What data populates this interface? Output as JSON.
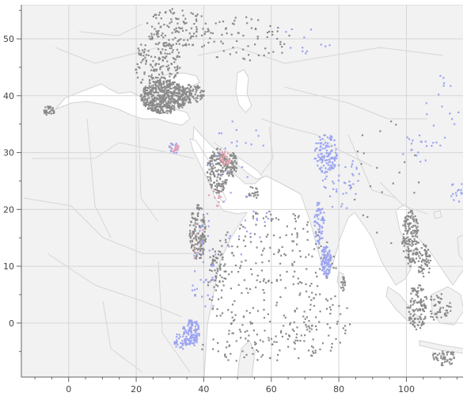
{
  "chart_data": {
    "type": "scatter",
    "projection": "equirectangular",
    "x": {
      "ticks": [
        0,
        20,
        40,
        60,
        80,
        100
      ],
      "minor_step": 5,
      "range": [
        -14,
        117
      ]
    },
    "y": {
      "ticks": [
        0,
        10,
        20,
        30,
        40,
        50
      ],
      "minor_step": 5,
      "range": [
        -9.5,
        56
      ]
    },
    "grid": true,
    "colors": {
      "land": "#f2f2f2",
      "land_border": "#d2d2d2",
      "ocean": "#ffffff",
      "grid": "#d6d6d6",
      "gray_points": "#8a8a8a",
      "blue_points": "#9aa3f0",
      "pink_points": "#e6a0b0"
    },
    "series": [
      {
        "color_key": "gray_points",
        "clusters": [
          {
            "cx": 28,
            "cy": 40,
            "rx": 7,
            "ry": 3,
            "n": 520
          },
          {
            "cx": 26,
            "cy": 46,
            "rx": 7,
            "ry": 5,
            "n": 160
          },
          {
            "cx": 32,
            "cy": 52,
            "rx": 10,
            "ry": 3.5,
            "n": 110
          },
          {
            "cx": 36,
            "cy": 40.5,
            "rx": 4,
            "ry": 1.6,
            "n": 90
          },
          {
            "cx": -6,
            "cy": 37.5,
            "rx": 1.6,
            "ry": 0.9,
            "n": 35
          },
          {
            "cx": 44,
            "cy": 27,
            "rx": 3.2,
            "ry": 4,
            "n": 170
          },
          {
            "cx": 48,
            "cy": 28,
            "rx": 1.6,
            "ry": 2.2,
            "n": 60
          },
          {
            "cx": 38,
            "cy": 16,
            "rx": 2.4,
            "ry": 5,
            "n": 150
          },
          {
            "cx": 44,
            "cy": 10,
            "rx": 2.5,
            "ry": 3,
            "n": 45
          },
          {
            "cx": 54,
            "cy": 23,
            "rx": 2,
            "ry": 1.2,
            "n": 20
          },
          {
            "cx": 60,
            "cy": 8,
            "rx": 20,
            "ry": 12,
            "n": 260
          },
          {
            "cx": 57,
            "cy": -4,
            "rx": 18,
            "ry": 3,
            "n": 70
          },
          {
            "cx": 74,
            "cy": 0,
            "rx": 10,
            "ry": 5,
            "n": 50
          },
          {
            "cx": 101,
            "cy": 15,
            "rx": 2.5,
            "ry": 5,
            "n": 160
          },
          {
            "cx": 105,
            "cy": 11,
            "rx": 2,
            "ry": 3,
            "n": 60
          },
          {
            "cx": 103,
            "cy": 3,
            "rx": 3,
            "ry": 4,
            "n": 120
          },
          {
            "cx": 109,
            "cy": 3,
            "rx": 4,
            "ry": 2.5,
            "n": 50
          },
          {
            "cx": 111,
            "cy": -6,
            "rx": 4,
            "ry": 1.4,
            "n": 50
          },
          {
            "cx": 81,
            "cy": 7,
            "rx": 0.8,
            "ry": 1.3,
            "n": 15
          },
          {
            "cx": 52,
            "cy": 50,
            "rx": 14,
            "ry": 4,
            "n": 70
          },
          {
            "cx": 95,
            "cy": 25,
            "rx": 12,
            "ry": 12,
            "n": 25
          }
        ]
      },
      {
        "color_key": "blue_points",
        "clusters": [
          {
            "cx": 36,
            "cy": -1.5,
            "rx": 2.5,
            "ry": 2.5,
            "n": 120
          },
          {
            "cx": 33,
            "cy": -3,
            "rx": 2,
            "ry": 1.5,
            "n": 30
          },
          {
            "cx": 76,
            "cy": 11,
            "rx": 1.5,
            "ry": 3,
            "n": 90
          },
          {
            "cx": 74,
            "cy": 18,
            "rx": 1.5,
            "ry": 4,
            "n": 60
          },
          {
            "cx": 76,
            "cy": 30,
            "rx": 3.5,
            "ry": 3.5,
            "n": 110
          },
          {
            "cx": 80,
            "cy": 25,
            "rx": 6,
            "ry": 5,
            "n": 50
          },
          {
            "cx": 104,
            "cy": 31,
            "rx": 6,
            "ry": 2.5,
            "n": 20
          },
          {
            "cx": 115,
            "cy": 23,
            "rx": 3,
            "ry": 2,
            "n": 20
          },
          {
            "cx": 31,
            "cy": 31,
            "rx": 1.5,
            "ry": 1,
            "n": 20
          },
          {
            "cx": 40,
            "cy": 10,
            "rx": 4,
            "ry": 10,
            "n": 40
          },
          {
            "cx": 50,
            "cy": 24,
            "rx": 10,
            "ry": 12,
            "n": 40
          },
          {
            "cx": 110,
            "cy": 38,
            "rx": 6,
            "ry": 6,
            "n": 15
          },
          {
            "cx": 70,
            "cy": 50,
            "rx": 8,
            "ry": 3,
            "n": 12
          }
        ]
      },
      {
        "color_key": "pink_points",
        "clusters": [
          {
            "cx": 46,
            "cy": 29,
            "rx": 1.5,
            "ry": 1.5,
            "n": 25
          },
          {
            "cx": 31,
            "cy": 31,
            "rx": 1.5,
            "ry": 0.8,
            "n": 12
          },
          {
            "cx": 43,
            "cy": 22,
            "rx": 2,
            "ry": 2,
            "n": 10
          },
          {
            "cx": 38,
            "cy": 14,
            "rx": 2,
            "ry": 4,
            "n": 8
          }
        ]
      }
    ]
  }
}
